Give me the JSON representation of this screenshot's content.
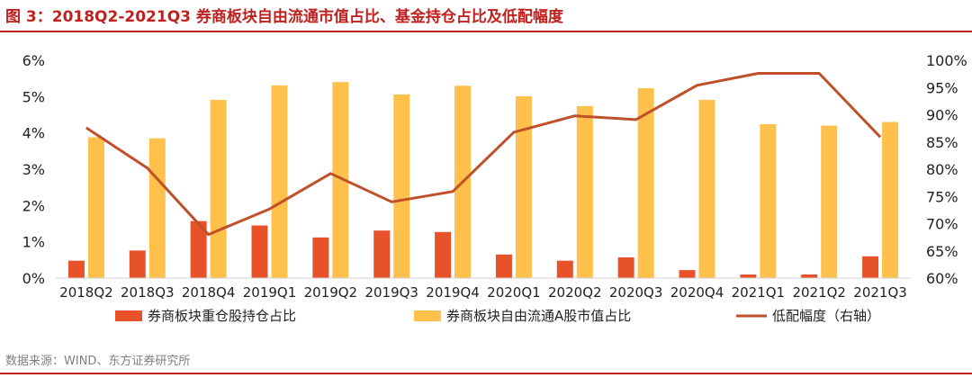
{
  "title": "图 3：2018Q2-2021Q3 券商板块自由流通市值占比、基金持仓占比及低配幅度",
  "source": "数据来源：WIND、东方证券研究所",
  "colors": {
    "title": "#c0201e",
    "series1": "#e8522a",
    "series2": "#ffc04c",
    "series3": "#c0502a"
  },
  "chart_data": {
    "type": "bar",
    "categories": [
      "2018Q2",
      "2018Q3",
      "2018Q4",
      "2019Q1",
      "2019Q2",
      "2019Q3",
      "2019Q4",
      "2020Q1",
      "2020Q2",
      "2020Q3",
      "2020Q4",
      "2021Q1",
      "2021Q2",
      "2021Q3"
    ],
    "y_left": {
      "ylim": [
        0,
        6
      ],
      "ticks": [
        "0%",
        "1%",
        "2%",
        "3%",
        "4%",
        "5%",
        "6%"
      ]
    },
    "y_right": {
      "ylim": [
        60,
        100
      ],
      "ticks": [
        "60%",
        "65%",
        "70%",
        "75%",
        "80%",
        "85%",
        "90%",
        "95%",
        "100%"
      ]
    },
    "series": [
      {
        "name": "券商板块重仓股持仓占比",
        "type": "bar",
        "axis": "left",
        "color": "#e8522a",
        "values": [
          0.48,
          0.76,
          1.57,
          1.45,
          1.12,
          1.31,
          1.27,
          0.65,
          0.48,
          0.57,
          0.22,
          0.1,
          0.1,
          0.6
        ]
      },
      {
        "name": "券商板块自由流通A股市值占比",
        "type": "bar",
        "axis": "left",
        "color": "#ffc04c",
        "values": [
          3.88,
          3.85,
          4.91,
          5.31,
          5.4,
          5.06,
          5.3,
          5.01,
          4.74,
          5.23,
          4.91,
          4.24,
          4.2,
          4.3
        ]
      },
      {
        "name": "低配幅度（右轴）",
        "type": "line",
        "axis": "right",
        "color": "#c0502a",
        "values": [
          87.6,
          80.2,
          68.0,
          72.7,
          79.2,
          74.0,
          75.9,
          86.8,
          89.8,
          89.1,
          95.4,
          97.6,
          97.6,
          85.9
        ]
      }
    ],
    "legend_position": "bottom",
    "grid": false
  }
}
